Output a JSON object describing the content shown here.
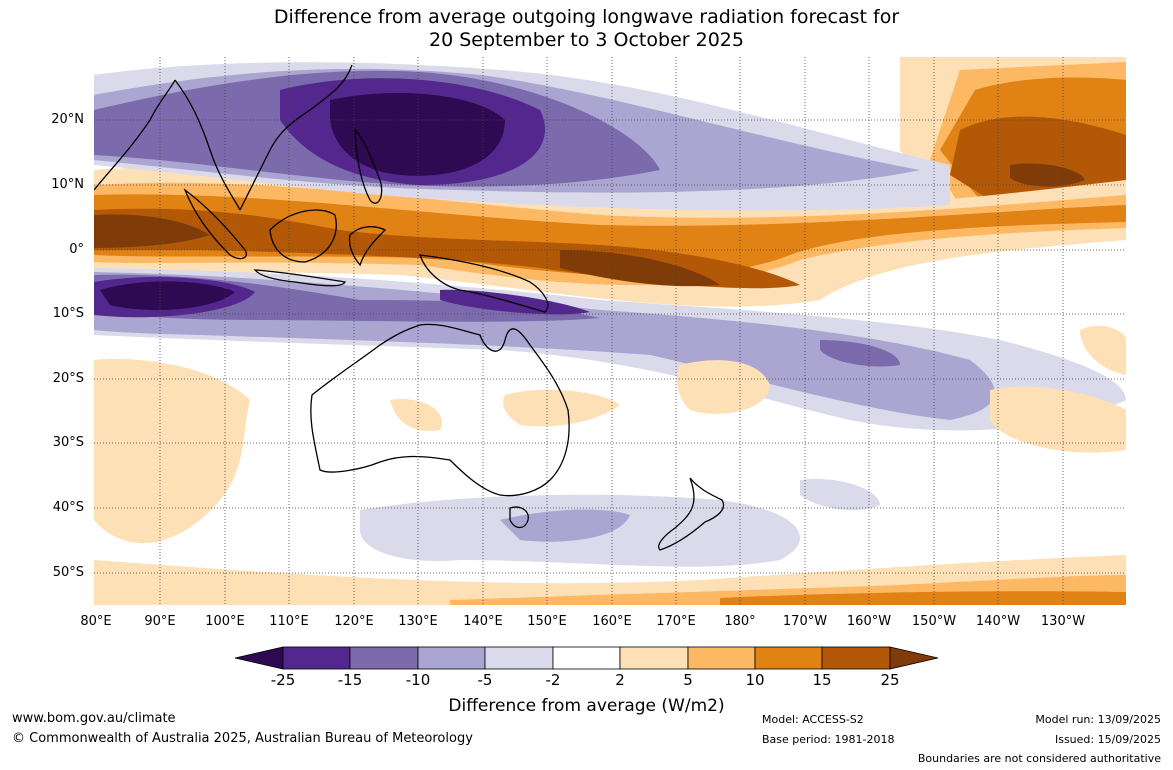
{
  "title": {
    "line1": "Difference from average outgoing longwave radiation forecast for",
    "line2": "20 September to 3 October 2025"
  },
  "latitude_labels": [
    "20°N",
    "10°N",
    "0°",
    "10°S",
    "20°S",
    "30°S",
    "40°S",
    "50°S"
  ],
  "longitude_labels": [
    "80°E",
    "90°E",
    "100°E",
    "110°E",
    "120°E",
    "130°E",
    "140°E",
    "150°E",
    "160°E",
    "170°E",
    "180°",
    "170°W",
    "160°W",
    "150°W",
    "140°W",
    "130°W"
  ],
  "legend": {
    "title": "Difference from average (W/m2)",
    "ticks": [
      "-25",
      "-15",
      "-10",
      "-5",
      "-2",
      "2",
      "5",
      "10",
      "15",
      "25"
    ],
    "colors": [
      "#2d0a52",
      "#54278f",
      "#7b6bad",
      "#aba6d1",
      "#dadaeb",
      "#ffffff",
      "#fee0b6",
      "#fdb863",
      "#e08214",
      "#b35806",
      "#7f3b08"
    ]
  },
  "footer": {
    "website": "www.bom.gov.au/climate",
    "copyright": "© Commonwealth of Australia 2025, Australian Bureau of Meteorology",
    "model": "Model: ACCESS-S2",
    "base_period": "Base period: 1981-2018",
    "model_run": "Model run: 13/09/2025",
    "issued": "Issued: 15/09/2025",
    "disclaimer": "Boundaries are not considered authoritative"
  }
}
